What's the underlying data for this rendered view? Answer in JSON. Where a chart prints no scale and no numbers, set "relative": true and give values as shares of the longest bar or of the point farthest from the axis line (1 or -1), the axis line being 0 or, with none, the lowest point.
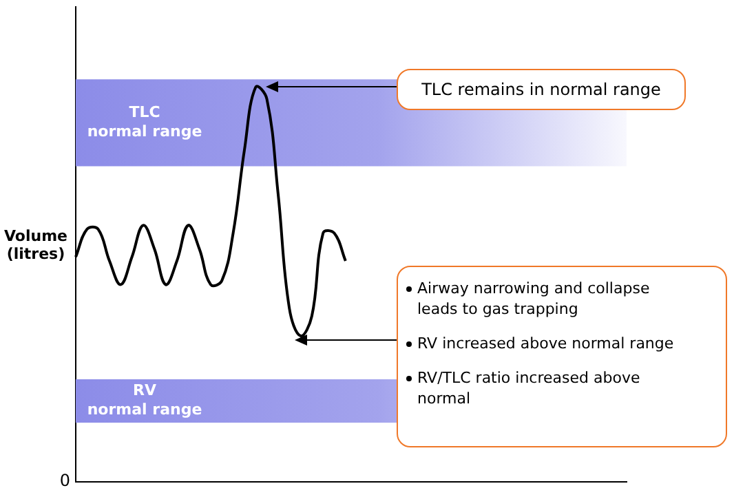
{
  "chart_data": {
    "type": "line",
    "relative": true,
    "ylabel": "Volume (litres)",
    "marker": "none",
    "legend": false,
    "grid": false,
    "categories": [
      null,
      null,
      null,
      null,
      null,
      null,
      null,
      null,
      null,
      null,
      null,
      null,
      null,
      null,
      null,
      null,
      null,
      null,
      null,
      null,
      null,
      null,
      null,
      null,
      null,
      null,
      null,
      null,
      null,
      null,
      null,
      null,
      null,
      null,
      null,
      null,
      null,
      null,
      null,
      null,
      null,
      null,
      null,
      null,
      null,
      null,
      null,
      null,
      null,
      null
    ],
    "series": [
      {
        "color": "#000000",
        "values": [
          0.57,
          0.64,
          0.64,
          0.56,
          0.5,
          0.57,
          0.65,
          0.59,
          0.5,
          0.56,
          0.65,
          0.59,
          0.5,
          0.51,
          0.63,
          0.84,
          1.0,
          0.97,
          0.73,
          0.44,
          0.37,
          0.42,
          0.63,
          0.63,
          0.56,
          null,
          null,
          null,
          null,
          null,
          null,
          null,
          null,
          null,
          null,
          null,
          null,
          null,
          null,
          null,
          null,
          null,
          null,
          null,
          null,
          null,
          null,
          null,
          null,
          null
        ]
      }
    ],
    "bands": [
      {
        "axis": "y",
        "from": 0.8,
        "to": 1.02,
        "label": "TLC normal range",
        "color": "#8c8ce8"
      },
      {
        "axis": "y",
        "from": 0.15,
        "to": 0.26,
        "label": "RV normal range",
        "color": "#8c8ce8"
      }
    ],
    "annotations": [
      "0",
      "TLC remains in normal range",
      "Airway narrowing and collapse leads to gas trapping",
      "RV increased above normal range",
      "RV/TLC ratio increased above normal"
    ]
  }
}
